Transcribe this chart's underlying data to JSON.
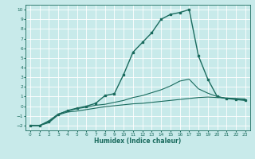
{
  "title": "",
  "xlabel": "Humidex (Indice chaleur)",
  "ylabel": "",
  "background_color": "#c8eaea",
  "grid_color": "#ffffff",
  "line_color": "#1a6b5e",
  "xlim": [
    -0.5,
    23.5
  ],
  "ylim": [
    -2.5,
    10.5
  ],
  "xticks": [
    0,
    1,
    2,
    3,
    4,
    5,
    6,
    7,
    8,
    9,
    10,
    11,
    12,
    13,
    14,
    15,
    16,
    17,
    18,
    19,
    20,
    21,
    22,
    23
  ],
  "yticks": [
    -2,
    -1,
    0,
    1,
    2,
    3,
    4,
    5,
    6,
    7,
    8,
    9,
    10
  ],
  "series": [
    {
      "x": [
        0,
        1,
        2,
        3,
        4,
        5,
        6,
        7,
        8,
        9,
        10,
        11,
        12,
        13,
        14,
        15,
        16,
        17,
        18,
        19,
        20,
        21,
        22,
        23
      ],
      "y": [
        -2,
        -2,
        -1.7,
        -0.9,
        -0.6,
        -0.5,
        -0.35,
        -0.2,
        -0.05,
        0.05,
        0.15,
        0.25,
        0.3,
        0.4,
        0.5,
        0.6,
        0.7,
        0.8,
        0.9,
        0.95,
        0.9,
        0.85,
        0.8,
        0.75
      ],
      "marker": false,
      "lw": 0.8
    },
    {
      "x": [
        0,
        1,
        2,
        3,
        4,
        5,
        6,
        7,
        8,
        9,
        10,
        11,
        12,
        13,
        14,
        15,
        16,
        17,
        18,
        19,
        20,
        21,
        22,
        23
      ],
      "y": [
        -2,
        -2,
        -1.5,
        -0.8,
        -0.5,
        -0.25,
        -0.1,
        0.1,
        0.2,
        0.4,
        0.6,
        0.9,
        1.1,
        1.4,
        1.7,
        2.1,
        2.6,
        2.8,
        1.8,
        1.35,
        1.0,
        0.8,
        0.75,
        0.65
      ],
      "marker": false,
      "lw": 0.8
    },
    {
      "x": [
        0,
        1,
        2,
        3,
        4,
        5,
        6,
        7,
        8,
        9,
        10,
        11,
        12,
        13,
        14,
        15,
        16,
        17,
        18,
        19,
        20,
        21,
        22,
        23
      ],
      "y": [
        -2,
        -2,
        -1.6,
        -0.85,
        -0.45,
        -0.2,
        0.0,
        0.3,
        1.1,
        1.3,
        3.3,
        5.6,
        6.6,
        7.6,
        9.0,
        9.5,
        9.7,
        10.0,
        5.2,
        2.8,
        1.0,
        0.8,
        0.7,
        0.6
      ],
      "marker": true,
      "lw": 1.0
    }
  ]
}
